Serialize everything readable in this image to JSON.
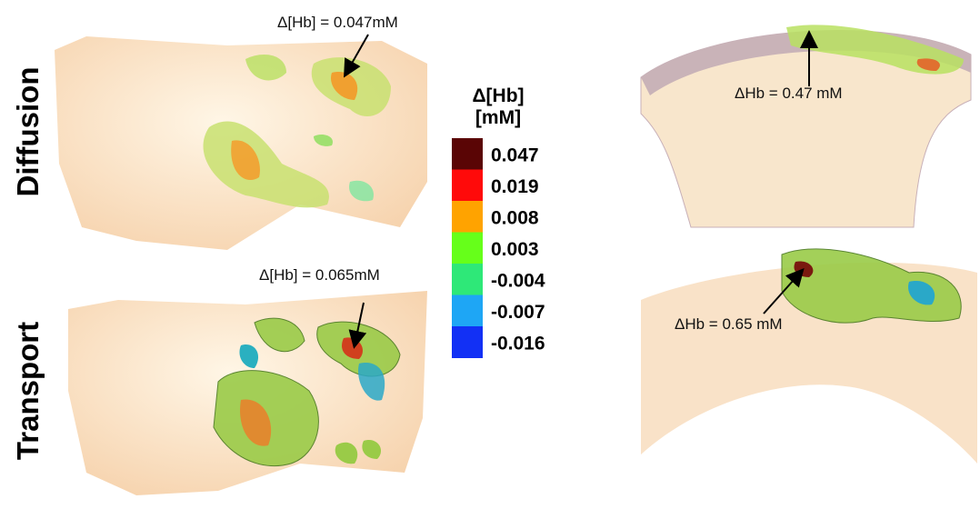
{
  "rows": [
    {
      "label": "Diffusion"
    },
    {
      "label": "Transport"
    }
  ],
  "annotations": [
    {
      "text": "Δ[Hb] = 0.047mM"
    },
    {
      "text": "Δ[Hb] = 0.065mM"
    },
    {
      "text": "ΔHb = 0.47 mM"
    },
    {
      "text": "ΔHb = 0.65 mM"
    }
  ],
  "colorbar": {
    "title": [
      "Δ[Hb]",
      "[mM]"
    ],
    "entries": [
      {
        "label": "0.047",
        "color": "#5a0505"
      },
      {
        "label": "0.019",
        "color": "#ff0a0a"
      },
      {
        "label": "0.008",
        "color": "#ffa300"
      },
      {
        "label": "0.003",
        "color": "#66ff1a"
      },
      {
        "label": "-0.004",
        "color": "#2ee878"
      },
      {
        "label": "-0.007",
        "color": "#1ea6f5"
      },
      {
        "label": "-0.016",
        "color": "#1230f5"
      }
    ]
  }
}
